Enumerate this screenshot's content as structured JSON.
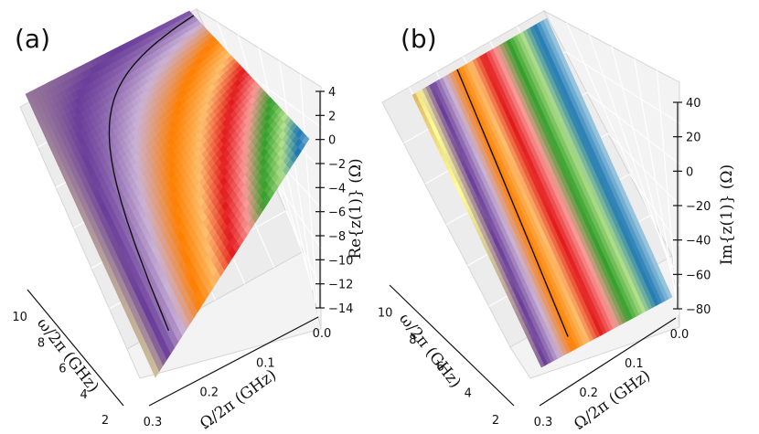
{
  "chart_data": [
    {
      "type": "surface",
      "panel_label": "(a)",
      "zlabel": "Re{z(1)} (Ω)",
      "xlabel": "ω/2π (GHz)",
      "ylabel": "Ω/2π (GHz)",
      "omega_ticks": [
        "2",
        "4",
        "6",
        "8",
        "10"
      ],
      "Omega_ticks": [
        "0.0",
        "0.1",
        "0.2",
        "0.3"
      ],
      "z_ticks": [
        "4",
        "2",
        "0",
        "−2",
        "−4",
        "−6",
        "−8",
        "−10",
        "−12",
        "−14"
      ],
      "omega_range": [
        2,
        11
      ],
      "Omega_range": [
        0,
        0.3
      ],
      "z_range": [
        -14,
        4
      ],
      "surface_corners": {
        "omega_11_Omega_0": 1.2,
        "omega_11_Omega_0.3": 2.0,
        "omega_2_Omega_0": 0.5,
        "omega_2_Omega_0.3": -13.5
      },
      "colormap": "Paired",
      "contour_level": 0
    },
    {
      "type": "surface",
      "panel_label": "(b)",
      "zlabel": "Im{z(1)} (Ω)",
      "xlabel": "ω/2π (GHz)",
      "ylabel": "Ω/2π (GHz)",
      "omega_ticks": [
        "2",
        "4",
        "6",
        "8",
        "10"
      ],
      "Omega_ticks": [
        "0.0",
        "0.1",
        "0.2",
        "0.3"
      ],
      "z_ticks": [
        "40",
        "20",
        "0",
        "−20",
        "−40",
        "−60",
        "−80"
      ],
      "omega_range": [
        2,
        11
      ],
      "Omega_range": [
        0,
        0.3
      ],
      "z_range": [
        -80,
        45
      ],
      "surface_corners": {
        "omega_11_Omega_0": 40,
        "omega_11_Omega_0.3": 26,
        "omega_2_Omega_0": -80,
        "omega_2_Omega_0.3": -80
      },
      "colormap": "Paired",
      "contour_level": 0
    }
  ]
}
